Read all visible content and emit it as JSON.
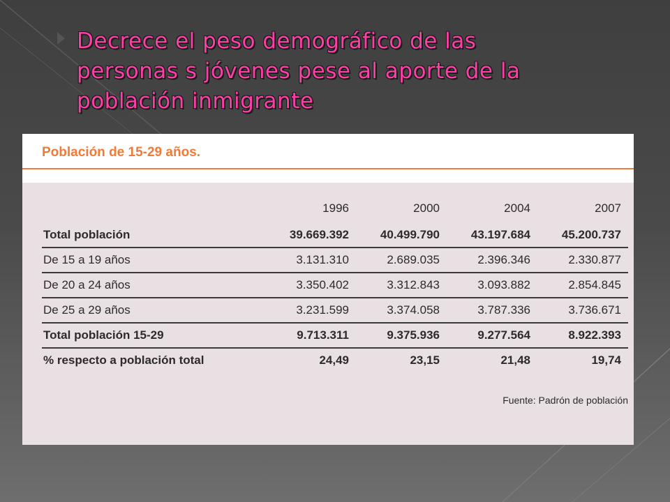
{
  "slide": {
    "title": "Decrece el  peso  demográfico    de las\npersonas s jóvenes  pese  al  aporte  de la\npoblación inmigrante"
  },
  "table": {
    "title": "Población de 15-29 años.",
    "years": [
      "1996",
      "2000",
      "2004",
      "2007"
    ],
    "rows": [
      {
        "label": "Total población",
        "values": [
          "39.669.392",
          "40.499.790",
          "43.197.684",
          "45.200.737"
        ]
      },
      {
        "label": "De 15 a 19 años",
        "values": [
          "3.131.310",
          "2.689.035",
          "2.396.346",
          "2.330.877"
        ]
      },
      {
        "label": "De 20 a 24 años",
        "values": [
          "3.350.402",
          "3.312.843",
          "3.093.882",
          "2.854.845"
        ]
      },
      {
        "label": "De 25 a 29 años",
        "values": [
          "3.231.599",
          "3.374.058",
          "3.787.336",
          "3.736.671"
        ]
      },
      {
        "label": "Total población 15-29",
        "values": [
          "9.713.311",
          "9.375.936",
          "9.277.564",
          "8.922.393"
        ]
      },
      {
        "label": "% respecto a población total",
        "values": [
          "24,49",
          "23,15",
          "21,48",
          "19,74"
        ]
      }
    ],
    "source": "Fuente: Padrón de población"
  }
}
